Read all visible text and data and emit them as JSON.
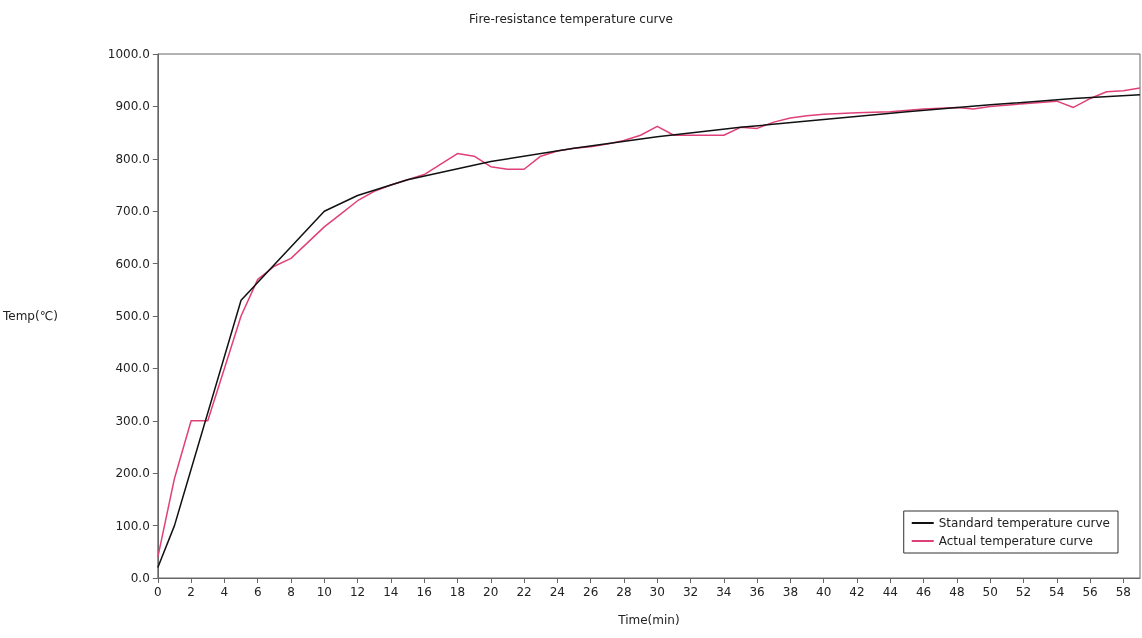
{
  "chart_data": {
    "type": "line",
    "title": "Fire-resistance temperature curve",
    "xlabel": "Time(min)",
    "ylabel": "Temp(℃)",
    "xlim": [
      0,
      59
    ],
    "xticks": [
      0,
      2,
      4,
      6,
      8,
      10,
      12,
      14,
      16,
      18,
      20,
      22,
      24,
      26,
      28,
      30,
      32,
      34,
      36,
      38,
      40,
      42,
      44,
      46,
      48,
      50,
      52,
      54,
      56,
      58
    ],
    "ylim": [
      0,
      1000
    ],
    "yticks": [
      {
        "value": 0,
        "label": "0.0"
      },
      {
        "value": 100,
        "label": "100.0"
      },
      {
        "value": 200,
        "label": "200.0"
      },
      {
        "value": 300,
        "label": "300.0"
      },
      {
        "value": 400,
        "label": "400.0"
      },
      {
        "value": 500,
        "label": "500.0"
      },
      {
        "value": 600,
        "label": "600.0"
      },
      {
        "value": 700,
        "label": "700.0"
      },
      {
        "value": 800,
        "label": "800.0"
      },
      {
        "value": 900,
        "label": "900.0"
      },
      {
        "value": 1000,
        "label": "1000.0"
      }
    ],
    "grid": false,
    "legend": "bottom right",
    "marker": "none",
    "line_style": "solid",
    "series": [
      {
        "name": "Standard temperature curve",
        "color": "#111111",
        "x": [
          0,
          1,
          5,
          10,
          12,
          15,
          20,
          25,
          30,
          35,
          40,
          45,
          50,
          55,
          59
        ],
        "values": [
          20,
          100,
          530,
          700,
          730,
          760,
          795,
          820,
          842,
          860,
          875,
          890,
          903,
          915,
          922
        ]
      },
      {
        "name": "Actual temperature curve",
        "color": "#e0407a",
        "x": [
          0,
          1,
          2,
          3,
          4,
          5,
          6,
          7,
          8,
          9,
          10,
          11,
          12,
          13,
          14,
          15,
          16,
          17,
          18,
          19,
          20,
          21,
          22,
          23,
          24,
          25,
          26,
          27,
          28,
          29,
          30,
          31,
          32,
          33,
          34,
          35,
          36,
          37,
          38,
          39,
          40,
          42,
          44,
          46,
          48,
          49,
          50,
          52,
          54,
          55,
          56,
          57,
          58,
          59
        ],
        "values": [
          40,
          190,
          300,
          300,
          400,
          500,
          570,
          595,
          610,
          640,
          670,
          695,
          720,
          738,
          750,
          760,
          770,
          790,
          810,
          805,
          785,
          780,
          780,
          805,
          815,
          820,
          823,
          828,
          835,
          845,
          862,
          845,
          845,
          845,
          845,
          860,
          858,
          870,
          878,
          882,
          885,
          888,
          890,
          895,
          898,
          895,
          900,
          905,
          910,
          898,
          915,
          928,
          930,
          935
        ]
      }
    ]
  }
}
